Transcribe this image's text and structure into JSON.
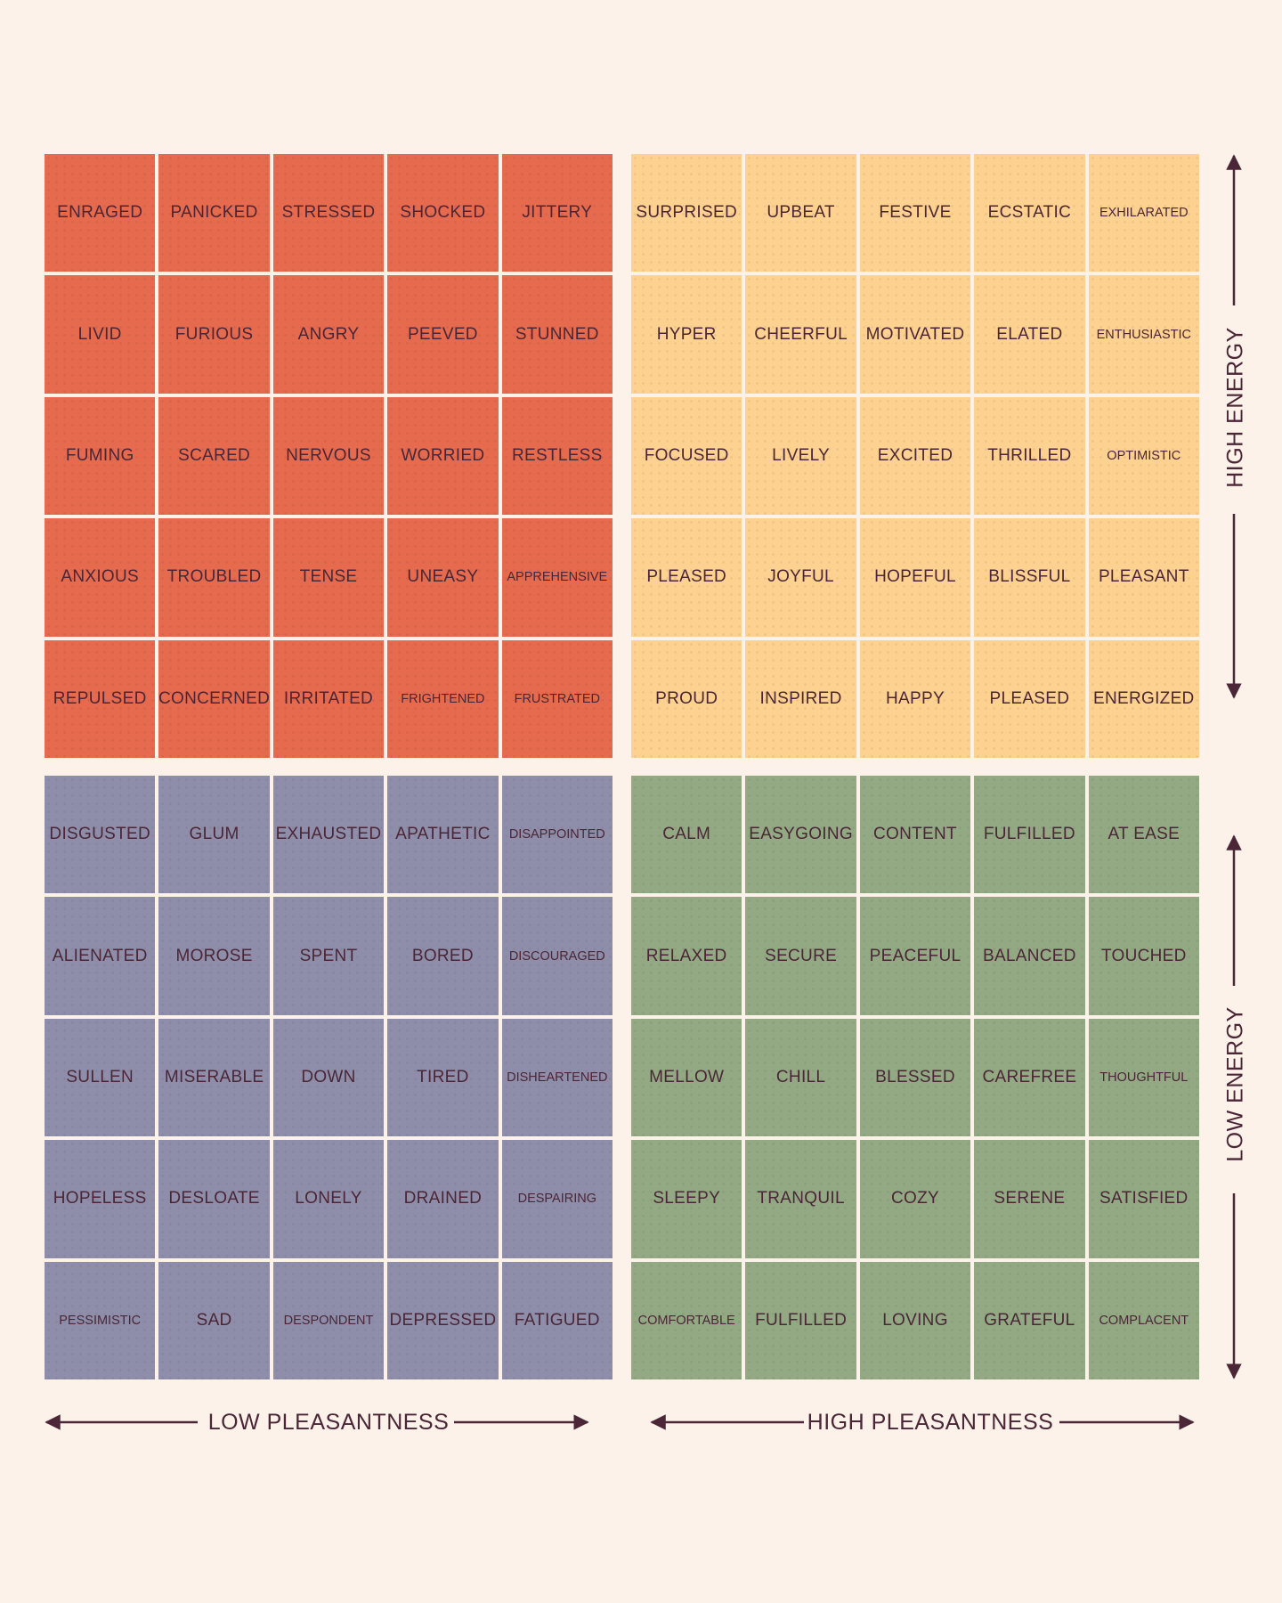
{
  "colors": {
    "background": "#fdf2ea",
    "red": "#e66a4e",
    "yellow": "#fdd18f",
    "blue": "#8f8eaa",
    "green": "#93a983",
    "text": "#4a2636",
    "axis": "#4a2636"
  },
  "quadrants": {
    "top_left": {
      "color": "#e66a4e",
      "words": [
        "ENRAGED",
        "PANICKED",
        "STRESSED",
        "SHOCKED",
        "JITTERY",
        "LIVID",
        "FURIOUS",
        "ANGRY",
        "PEEVED",
        "STUNNED",
        "FUMING",
        "SCARED",
        "NERVOUS",
        "WORRIED",
        "RESTLESS",
        "ANXIOUS",
        "TROUBLED",
        "TENSE",
        "UNEASY",
        "APPREHENSIVE",
        "REPULSED",
        "CONCERNED",
        "IRRITATED",
        "FRIGHTENED",
        "FRUSTRATED"
      ]
    },
    "top_right": {
      "color": "#fdd18f",
      "words": [
        "SURPRISED",
        "UPBEAT",
        "FESTIVE",
        "ECSTATIC",
        "EXHILARATED",
        "HYPER",
        "CHEERFUL",
        "MOTIVATED",
        "ELATED",
        "ENTHUSIASTIC",
        "FOCUSED",
        "LIVELY",
        "EXCITED",
        "THRILLED",
        "OPTIMISTIC",
        "PLEASED",
        "JOYFUL",
        "HOPEFUL",
        "BLISSFUL",
        "PLEASANT",
        "PROUD",
        "INSPIRED",
        "HAPPY",
        "PLEASED",
        "ENERGIZED"
      ]
    },
    "bottom_left": {
      "color": "#8f8eaa",
      "words": [
        "DISGUSTED",
        "GLUM",
        "EXHAUSTED",
        "APATHETIC",
        "DISAPPOINTED",
        "ALIENATED",
        "MOROSE",
        "SPENT",
        "BORED",
        "DISCOURAGED",
        "SULLEN",
        "MISERABLE",
        "DOWN",
        "TIRED",
        "DISHEARTENED",
        "HOPELESS",
        "DESLOATE",
        "LONELY",
        "DRAINED",
        "DESPAIRING",
        "PESSIMISTIC",
        "SAD",
        "DESPONDENT",
        "DEPRESSED",
        "FATIGUED"
      ]
    },
    "bottom_right": {
      "color": "#93a983",
      "words": [
        "CALM",
        "EASYGOING",
        "CONTENT",
        "FULFILLED",
        "AT EASE",
        "RELAXED",
        "SECURE",
        "PEACEFUL",
        "BALANCED",
        "TOUCHED",
        "MELLOW",
        "CHILL",
        "BLESSED",
        "CAREFREE",
        "THOUGHTFUL",
        "SLEEPY",
        "TRANQUIL",
        "COZY",
        "SERENE",
        "SATISFIED",
        "COMFORTABLE",
        "FULFILLED",
        "LOVING",
        "GRATEFUL",
        "COMPLACENT"
      ]
    }
  },
  "axes": {
    "x_left_label": "LOW PLEASANTNESS",
    "x_right_label": "HIGH PLEASANTNESS",
    "y_top_label": "HIGH ENERGY",
    "y_bottom_label": "LOW ENERGY"
  }
}
